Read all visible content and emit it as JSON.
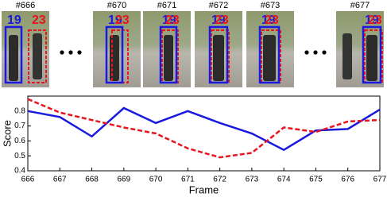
{
  "frames": {
    "labels": [
      "#666",
      "#670",
      "#671",
      "#672",
      "#673",
      "#677"
    ],
    "ids": [
      "19",
      "23"
    ]
  },
  "chart_data": {
    "type": "line",
    "xlabel": "Frame",
    "ylabel": "Score",
    "x": [
      666,
      667,
      668,
      669,
      670,
      671,
      672,
      673,
      674,
      675,
      676,
      677
    ],
    "series": [
      {
        "color": "#1a1adf",
        "dash": "solid",
        "values": [
          0.8,
          0.76,
          0.63,
          0.82,
          0.72,
          0.8,
          0.72,
          0.65,
          0.54,
          0.67,
          0.68,
          0.81
        ]
      },
      {
        "color": "#e8141e",
        "dash": "dashed",
        "values": [
          0.88,
          0.79,
          0.74,
          0.69,
          0.65,
          0.55,
          0.49,
          0.52,
          0.69,
          0.66,
          0.73,
          0.74
        ]
      }
    ],
    "xlim": [
      666,
      677
    ],
    "xticks": [
      666,
      667,
      668,
      669,
      670,
      671,
      672,
      673,
      674,
      675,
      676,
      677
    ],
    "ylim": [
      0.4,
      0.9
    ],
    "yticks": [
      0.4,
      0.5,
      0.6,
      0.7,
      0.8
    ]
  }
}
